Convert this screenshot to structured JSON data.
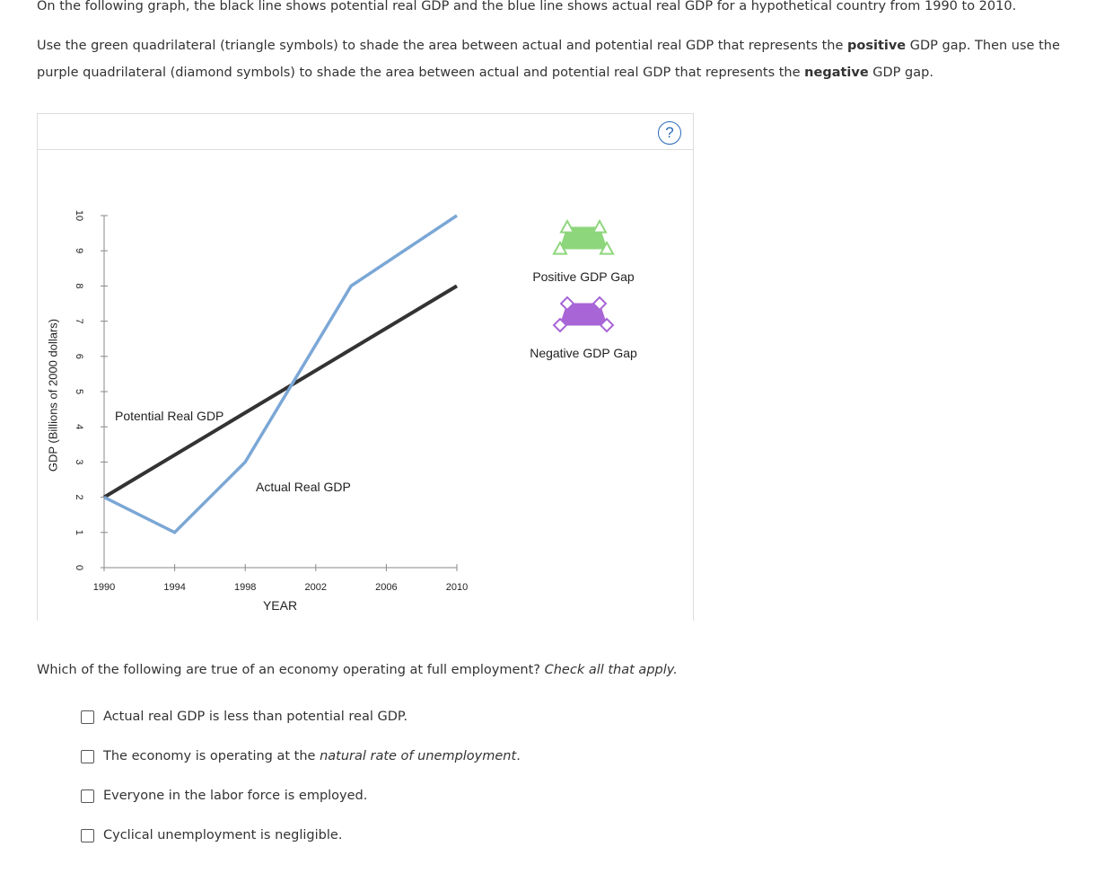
{
  "intro": "On the following graph, the black line shows potential real GDP and the blue line shows actual real GDP for a hypothetical country from 1990 to 2010.",
  "instruction": [
    "Use the green quadrilateral (triangle symbols) to shade the area between actual and potential real GDP that represents the ",
    "positive",
    " GDP gap. Then use the purple quadrilateral (diamond symbols) to shade the area between actual and potential real GDP that represents the ",
    "negative",
    " GDP gap."
  ],
  "help_icon": "?",
  "chart_data": {
    "type": "line",
    "x_label": "YEAR",
    "y_label": "GDP (Billions of 2000 dollars)",
    "xlim": [
      1990,
      2010
    ],
    "ylim": [
      0,
      10
    ],
    "xticks": [
      1990,
      1994,
      1998,
      2002,
      2006,
      2010
    ],
    "yticks": [
      0,
      1,
      2,
      3,
      4,
      5,
      6,
      7,
      8,
      9,
      10
    ],
    "series": [
      {
        "name": "Potential Real GDP",
        "color": "#333333",
        "x": [
          1990,
          2010
        ],
        "values": [
          2,
          8
        ]
      },
      {
        "name": "Actual Real GDP",
        "color": "#7ba7d6",
        "x": [
          1990,
          1994,
          1998,
          2004,
          2010
        ],
        "values": [
          2,
          1,
          3,
          8,
          10
        ]
      }
    ]
  },
  "palette": [
    {
      "label": "Positive GDP Gap",
      "color": "#8ed67c"
    },
    {
      "label": "Negative GDP Gap",
      "color": "#a865d6"
    }
  ],
  "question": [
    "Which of the following are true of an economy operating at full employment? ",
    "Check all that apply."
  ],
  "options": [
    [
      "Actual real GDP is less than potential real GDP."
    ],
    [
      "The economy is operating at the ",
      "natural rate of unemployment",
      "."
    ],
    [
      "Everyone in the labor force is employed."
    ],
    [
      "Cyclical unemployment is negligible."
    ]
  ]
}
